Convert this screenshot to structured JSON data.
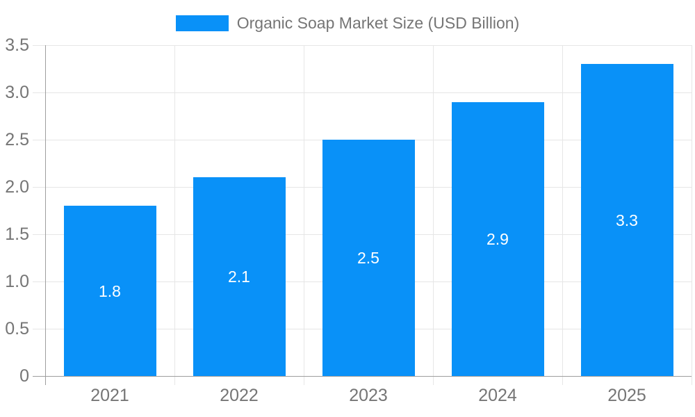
{
  "legend": {
    "label": "Organic Soap Market Size (USD Billion)"
  },
  "chart_data": {
    "type": "bar",
    "title": "Organic Soap Market Size (USD Billion)",
    "categories": [
      "2021",
      "2022",
      "2023",
      "2024",
      "2025"
    ],
    "values": [
      1.8,
      2.1,
      2.5,
      2.9,
      3.3
    ],
    "bar_labels": [
      "1.8",
      "2.1",
      "2.5",
      "2.9",
      "3.3"
    ],
    "xlabel": "",
    "ylabel": "",
    "ylim": [
      0,
      3.5
    ],
    "ytick_step": 0.5,
    "ytick_labels": [
      "0",
      "0.5",
      "1.0",
      "1.5",
      "2.0",
      "2.5",
      "3.0",
      "3.5"
    ],
    "grid": true,
    "legend_position": "top"
  },
  "colors": {
    "bar": "#0991f8",
    "bar_label_text": "#ffffff",
    "axis_text": "#757575",
    "gridline": "#e6e6e6",
    "axis_line": "#9e9e9e",
    "background": "#ffffff"
  }
}
